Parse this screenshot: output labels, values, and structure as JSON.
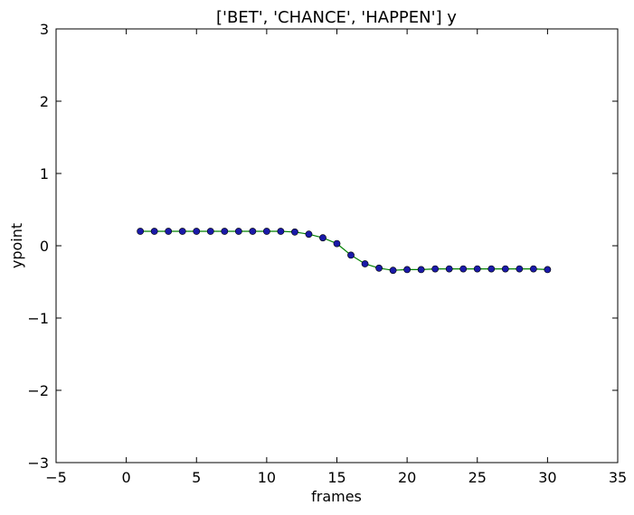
{
  "chart_data": {
    "type": "line",
    "title": "['BET', 'CHANCE', 'HAPPEN'] y",
    "xlabel": "frames",
    "ylabel": "ypoint",
    "xlim": [
      -5,
      35
    ],
    "ylim": [
      -3,
      3
    ],
    "xticks": [
      -5,
      0,
      5,
      10,
      15,
      20,
      25,
      30,
      35
    ],
    "xtick_labels": [
      "−5",
      "0",
      "5",
      "10",
      "15",
      "20",
      "25",
      "30",
      "35"
    ],
    "yticks": [
      -3,
      -2,
      -1,
      0,
      1,
      2,
      3
    ],
    "ytick_labels": [
      "−3",
      "−2",
      "−1",
      "0",
      "1",
      "2",
      "3"
    ],
    "grid": false,
    "line_color": "#008000",
    "marker_color": "#1a1aa8",
    "series": [
      {
        "x": [
          1,
          2,
          3,
          4,
          5,
          6,
          7,
          8,
          9,
          10,
          11,
          12,
          13,
          14,
          15,
          16,
          17,
          18,
          19,
          20,
          21,
          22,
          23,
          24,
          25,
          26,
          27,
          28,
          29,
          30
        ],
        "y": [
          0.2,
          0.2,
          0.2,
          0.2,
          0.2,
          0.2,
          0.2,
          0.2,
          0.2,
          0.2,
          0.2,
          0.19,
          0.16,
          0.11,
          0.03,
          -0.13,
          -0.25,
          -0.31,
          -0.34,
          -0.33,
          -0.33,
          -0.32,
          -0.32,
          -0.32,
          -0.32,
          -0.32,
          -0.32,
          -0.32,
          -0.32,
          -0.33
        ]
      }
    ]
  }
}
